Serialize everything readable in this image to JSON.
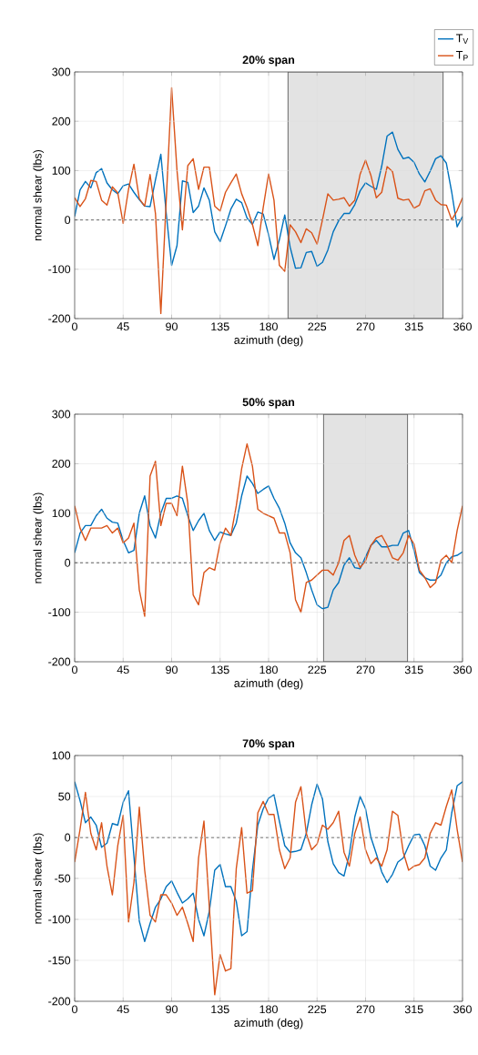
{
  "chart_data": [
    {
      "type": "line",
      "title": "20% span",
      "xlabel": "azimuth (deg)",
      "ylabel": "normal shear (lbs)",
      "x": [
        0,
        5,
        10,
        15,
        20,
        25,
        30,
        35,
        40,
        45,
        50,
        55,
        60,
        65,
        70,
        75,
        80,
        85,
        90,
        95,
        100,
        105,
        110,
        115,
        120,
        125,
        130,
        135,
        140,
        145,
        150,
        155,
        160,
        165,
        170,
        175,
        180,
        185,
        190,
        195,
        200,
        205,
        210,
        215,
        220,
        225,
        230,
        235,
        240,
        245,
        250,
        255,
        260,
        265,
        270,
        275,
        280,
        285,
        290,
        295,
        300,
        305,
        310,
        315,
        320,
        325,
        330,
        335,
        340,
        345,
        350,
        355,
        360
      ],
      "series": [
        {
          "name": "T$_{V}$",
          "color": "#0072bd",
          "values": [
            7,
            61,
            78,
            65,
            96,
            104,
            75,
            61,
            53,
            69,
            73,
            56,
            41,
            28,
            27,
            81,
            133,
            13,
            -92,
            -52,
            79,
            76,
            15,
            28,
            65,
            40,
            -24,
            -44,
            -12,
            22,
            42,
            35,
            4,
            -9,
            16,
            12,
            -30,
            -80,
            -40,
            10,
            -55,
            -98,
            -97,
            -66,
            -64,
            -94,
            -86,
            -61,
            -24,
            -2,
            13,
            13,
            31,
            59,
            75,
            68,
            62,
            109,
            170,
            178,
            143,
            124,
            127,
            117,
            93,
            77,
            99,
            124,
            130,
            115,
            56,
            -14,
            7
          ]
        },
        {
          "name": "T$_{P}$",
          "color": "#d95319",
          "values": [
            45,
            27,
            43,
            80,
            78,
            40,
            30,
            67,
            55,
            -7,
            62,
            113,
            43,
            28,
            92,
            13,
            -190,
            40,
            268,
            100,
            -20,
            110,
            124,
            62,
            107,
            107,
            28,
            18,
            56,
            75,
            93,
            53,
            25,
            -9,
            -52,
            25,
            93,
            40,
            -92,
            -104,
            -10,
            -24,
            -46,
            -18,
            -26,
            -49,
            0,
            53,
            40,
            42,
            45,
            28,
            40,
            93,
            121,
            90,
            45,
            56,
            108,
            98,
            44,
            40,
            42,
            24,
            30,
            59,
            63,
            40,
            31,
            30,
            0,
            19,
            45
          ]
        }
      ],
      "xlim": [
        0,
        360
      ],
      "ylim": [
        -200,
        300
      ],
      "xticks": [
        0,
        45,
        90,
        135,
        180,
        225,
        270,
        315,
        360
      ],
      "yticks": [
        -200,
        -100,
        0,
        100,
        200,
        300
      ],
      "grid": true,
      "legend": "top right",
      "ref_lines": [
        {
          "axis": "y",
          "value": 0,
          "color": "#000000",
          "line_style": "dashed"
        }
      ],
      "bands": [
        {
          "axis": "x",
          "from": 198,
          "to": 342,
          "color": "#e3e3e3"
        }
      ]
    },
    {
      "type": "line",
      "title": "50% span",
      "xlabel": "azimuth (deg)",
      "ylabel": "normal shear (lbs)",
      "x": [
        0,
        5,
        10,
        15,
        20,
        25,
        30,
        35,
        40,
        45,
        50,
        55,
        60,
        65,
        70,
        75,
        80,
        85,
        90,
        95,
        100,
        105,
        110,
        115,
        120,
        125,
        130,
        135,
        140,
        145,
        150,
        155,
        160,
        165,
        170,
        175,
        180,
        185,
        190,
        195,
        200,
        205,
        210,
        215,
        220,
        225,
        230,
        235,
        240,
        245,
        250,
        255,
        260,
        265,
        270,
        275,
        280,
        285,
        290,
        295,
        300,
        305,
        310,
        315,
        320,
        325,
        330,
        335,
        340,
        345,
        350,
        355,
        360
      ],
      "series": [
        {
          "color": "#0072bd",
          "values": [
            20,
            60,
            75,
            75,
            95,
            108,
            90,
            82,
            80,
            45,
            20,
            25,
            100,
            135,
            75,
            50,
            100,
            130,
            130,
            135,
            130,
            95,
            65,
            85,
            100,
            65,
            45,
            62,
            58,
            55,
            80,
            135,
            175,
            160,
            140,
            148,
            155,
            130,
            110,
            80,
            40,
            20,
            10,
            -20,
            -55,
            -85,
            -93,
            -90,
            -55,
            -40,
            -5,
            10,
            -10,
            -12,
            12,
            35,
            45,
            32,
            32,
            35,
            35,
            60,
            65,
            25,
            -20,
            -30,
            -35,
            -35,
            -25,
            0,
            12,
            15,
            22
          ]
        },
        {
          "color": "#d95319",
          "values": [
            115,
            70,
            45,
            70,
            70,
            70,
            75,
            60,
            70,
            40,
            50,
            80,
            -55,
            -108,
            175,
            205,
            75,
            120,
            120,
            95,
            195,
            120,
            -65,
            -85,
            -20,
            -10,
            -15,
            40,
            70,
            55,
            115,
            190,
            240,
            195,
            108,
            100,
            95,
            90,
            60,
            60,
            20,
            -75,
            -100,
            -40,
            -35,
            -25,
            -15,
            -15,
            -25,
            0,
            45,
            55,
            15,
            -10,
            4,
            35,
            50,
            55,
            35,
            10,
            5,
            20,
            55,
            38,
            -15,
            -30,
            -50,
            -40,
            5,
            15,
            0,
            65,
            115
          ]
        }
      ],
      "xlim": [
        0,
        360
      ],
      "ylim": [
        -200,
        300
      ],
      "xticks": [
        0,
        45,
        90,
        135,
        180,
        225,
        270,
        315,
        360
      ],
      "yticks": [
        -200,
        -100,
        0,
        100,
        200,
        300
      ],
      "grid": true,
      "ref_lines": [
        {
          "axis": "y",
          "value": 0,
          "color": "#000000",
          "line_style": "dashed"
        }
      ],
      "bands": [
        {
          "axis": "x",
          "from": 231,
          "to": 309,
          "color": "#e3e3e3"
        }
      ]
    },
    {
      "type": "line",
      "title": "70% span",
      "xlabel": "azimuth (deg)",
      "ylabel": "normal shear (lbs)",
      "x": [
        0,
        5,
        10,
        15,
        20,
        25,
        30,
        35,
        40,
        45,
        50,
        55,
        60,
        65,
        70,
        75,
        80,
        85,
        90,
        95,
        100,
        105,
        110,
        115,
        120,
        125,
        130,
        135,
        140,
        145,
        150,
        155,
        160,
        165,
        170,
        175,
        180,
        185,
        190,
        195,
        200,
        205,
        210,
        215,
        220,
        225,
        230,
        235,
        240,
        245,
        250,
        255,
        260,
        265,
        270,
        275,
        280,
        285,
        290,
        295,
        300,
        305,
        310,
        315,
        320,
        325,
        330,
        335,
        340,
        345,
        350,
        355,
        360
      ],
      "series": [
        {
          "color": "#0072bd",
          "values": [
            68,
            45,
            18,
            25,
            15,
            -12,
            -7,
            17,
            15,
            43,
            57,
            -23,
            -102,
            -127,
            -105,
            -85,
            -75,
            -60,
            -53,
            -67,
            -80,
            -75,
            -68,
            -100,
            -120,
            -90,
            -40,
            -33,
            -60,
            -60,
            -78,
            -120,
            -115,
            -40,
            15,
            35,
            48,
            52,
            20,
            -10,
            -18,
            -17,
            -15,
            5,
            40,
            65,
            47,
            -5,
            -32,
            -43,
            -47,
            -20,
            25,
            50,
            35,
            0,
            -20,
            -42,
            -55,
            -45,
            -30,
            -25,
            -10,
            3,
            4,
            -10,
            -35,
            -40,
            -25,
            -15,
            30,
            63,
            68
          ]
        },
        {
          "color": "#d95319",
          "values": [
            -30,
            10,
            55,
            5,
            -15,
            18,
            -35,
            -70,
            -10,
            27,
            -103,
            -55,
            37,
            -40,
            -95,
            -103,
            -70,
            -70,
            -80,
            -95,
            -85,
            -105,
            -127,
            -25,
            20,
            -85,
            -192,
            -143,
            -163,
            -160,
            -38,
            12,
            -68,
            -65,
            30,
            44,
            28,
            28,
            -15,
            -38,
            -25,
            43,
            62,
            5,
            -15,
            -8,
            15,
            10,
            18,
            32,
            -18,
            -35,
            5,
            25,
            -15,
            -32,
            -25,
            -35,
            -15,
            32,
            27,
            -18,
            -40,
            -35,
            -33,
            -25,
            5,
            18,
            15,
            38,
            58,
            10,
            -30
          ]
        }
      ],
      "xlim": [
        0,
        360
      ],
      "ylim": [
        -200,
        100
      ],
      "xticks": [
        0,
        45,
        90,
        135,
        180,
        225,
        270,
        315,
        360
      ],
      "yticks": [
        -200,
        -150,
        -100,
        -50,
        0,
        50,
        100
      ],
      "grid": true,
      "ref_lines": [
        {
          "axis": "y",
          "value": 0,
          "color": "#000000",
          "line_style": "dashed"
        }
      ]
    }
  ]
}
